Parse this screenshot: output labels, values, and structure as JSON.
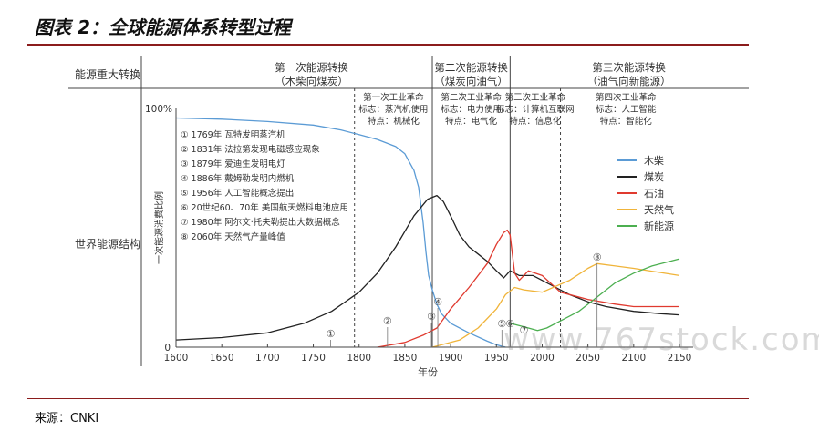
{
  "figure": {
    "title": "图表 2：全球能源体系转型过程",
    "source": "来源：CNKI",
    "watermark": "www.767stock.com"
  },
  "header": {
    "row1_label": "能源重大转换",
    "row2_label": "世界能源结构",
    "transitions": [
      {
        "line1": "第一次能源转换",
        "line2": "（木柴向煤炭）"
      },
      {
        "line1": "第二次能源转换",
        "line2": "（煤炭向油气）"
      },
      {
        "line1": "第三次能源转换",
        "line2": "（油气向新能源）"
      }
    ]
  },
  "revolutions": [
    {
      "l1": "第一次工业革命",
      "l2": "标志：蒸汽机使用",
      "l3": "特点：机械化"
    },
    {
      "l1": "第二次工业革命",
      "l2": "标志：电力使用",
      "l3": "特点：电气化"
    },
    {
      "l1": "第三次工业革命",
      "l2": "标志：计算机互联网",
      "l3": "特点：信息化"
    },
    {
      "l1": "第四次工业革命",
      "l2": "标志：人工智能",
      "l3": "特点：智能化"
    }
  ],
  "events": [
    "① 1769年 瓦特发明蒸汽机",
    "② 1831年 法拉第发现电磁感应现象",
    "③ 1879年 爱迪生发明电灯",
    "④ 1886年 戴姆勒发明内燃机",
    "⑤ 1956年 人工智能概念提出",
    "⑥ 20世纪60、70年 美国航天燃料电池应用",
    "⑦ 1980年 阿尔文·托夫勒提出大数据概念",
    "⑧ 2060年 天然气产量峰值"
  ],
  "markers": [
    {
      "symbol": "①",
      "x": 1769
    },
    {
      "symbol": "②",
      "x": 1831
    },
    {
      "symbol": "③",
      "x": 1879
    },
    {
      "symbol": "④",
      "x": 1886
    },
    {
      "symbol": "⑤",
      "x": 1956
    },
    {
      "symbol": "⑥",
      "x": 1965
    },
    {
      "symbol": "⑦",
      "x": 1980
    },
    {
      "symbol": "⑧",
      "x": 2060
    }
  ],
  "chart_data": {
    "type": "line",
    "xlabel": "年份",
    "ylabel": "一次能源消费比例",
    "xlim": [
      1600,
      2150
    ],
    "x_ticks": [
      1600,
      1650,
      1700,
      1750,
      1800,
      1850,
      1900,
      1950,
      2000,
      2050,
      2100,
      2150
    ],
    "y_tick_labels": [
      "0",
      "100%"
    ],
    "ylim": [
      0,
      100
    ],
    "legend_position": "right",
    "era_boundaries": [
      1880,
      1965
    ],
    "revolution_boundaries": [
      1795,
      1880,
      1965,
      2020
    ],
    "series": [
      {
        "name": "木柴",
        "color": "#5b9bd5",
        "points": [
          [
            1600,
            96
          ],
          [
            1650,
            95.5
          ],
          [
            1700,
            94.5
          ],
          [
            1750,
            93
          ],
          [
            1780,
            91
          ],
          [
            1800,
            89
          ],
          [
            1820,
            87
          ],
          [
            1840,
            84
          ],
          [
            1850,
            81
          ],
          [
            1860,
            74
          ],
          [
            1865,
            67
          ],
          [
            1870,
            52
          ],
          [
            1873,
            40
          ],
          [
            1876,
            30
          ],
          [
            1880,
            24
          ],
          [
            1885,
            18
          ],
          [
            1890,
            14
          ],
          [
            1900,
            10
          ],
          [
            1920,
            6
          ],
          [
            1940,
            2.5
          ],
          [
            1950,
            1
          ],
          [
            1960,
            0
          ]
        ]
      },
      {
        "name": "煤炭",
        "color": "#222222",
        "points": [
          [
            1600,
            3
          ],
          [
            1650,
            4
          ],
          [
            1700,
            6
          ],
          [
            1740,
            10
          ],
          [
            1770,
            15
          ],
          [
            1800,
            23
          ],
          [
            1820,
            31
          ],
          [
            1840,
            42
          ],
          [
            1860,
            55
          ],
          [
            1875,
            62
          ],
          [
            1885,
            63.5
          ],
          [
            1892,
            61
          ],
          [
            1900,
            55
          ],
          [
            1910,
            47
          ],
          [
            1920,
            42
          ],
          [
            1930,
            39
          ],
          [
            1940,
            36
          ],
          [
            1950,
            32
          ],
          [
            1958,
            29
          ],
          [
            1965,
            32
          ],
          [
            1975,
            30
          ],
          [
            1990,
            30
          ],
          [
            2010,
            26
          ],
          [
            2030,
            22
          ],
          [
            2050,
            19
          ],
          [
            2070,
            17
          ],
          [
            2100,
            15
          ],
          [
            2130,
            14
          ],
          [
            2150,
            13.5
          ]
        ]
      },
      {
        "name": "石油",
        "color": "#e03a2f",
        "points": [
          [
            1820,
            0
          ],
          [
            1850,
            2
          ],
          [
            1870,
            5
          ],
          [
            1885,
            8
          ],
          [
            1900,
            16
          ],
          [
            1920,
            25
          ],
          [
            1940,
            35
          ],
          [
            1950,
            43
          ],
          [
            1958,
            48
          ],
          [
            1962,
            49
          ],
          [
            1965,
            47
          ],
          [
            1970,
            31
          ],
          [
            1975,
            28
          ],
          [
            1985,
            32
          ],
          [
            2000,
            30
          ],
          [
            2020,
            23
          ],
          [
            2050,
            20
          ],
          [
            2080,
            18
          ],
          [
            2100,
            17
          ],
          [
            2150,
            17
          ]
        ]
      },
      {
        "name": "天然气",
        "color": "#f0b43a",
        "points": [
          [
            1880,
            0
          ],
          [
            1890,
            1
          ],
          [
            1910,
            3
          ],
          [
            1930,
            8
          ],
          [
            1950,
            16
          ],
          [
            1960,
            22
          ],
          [
            1970,
            25
          ],
          [
            1980,
            24
          ],
          [
            2000,
            23
          ],
          [
            2030,
            28
          ],
          [
            2050,
            33
          ],
          [
            2060,
            35
          ],
          [
            2080,
            34
          ],
          [
            2100,
            33
          ],
          [
            2150,
            30
          ]
        ]
      },
      {
        "name": "新能源",
        "color": "#4caf50",
        "points": [
          [
            1965,
            10
          ],
          [
            1975,
            9
          ],
          [
            1985,
            8
          ],
          [
            1995,
            7
          ],
          [
            2005,
            8
          ],
          [
            2020,
            11
          ],
          [
            2040,
            15
          ],
          [
            2060,
            21
          ],
          [
            2080,
            27
          ],
          [
            2100,
            31
          ],
          [
            2120,
            34
          ],
          [
            2150,
            37
          ]
        ]
      }
    ]
  }
}
